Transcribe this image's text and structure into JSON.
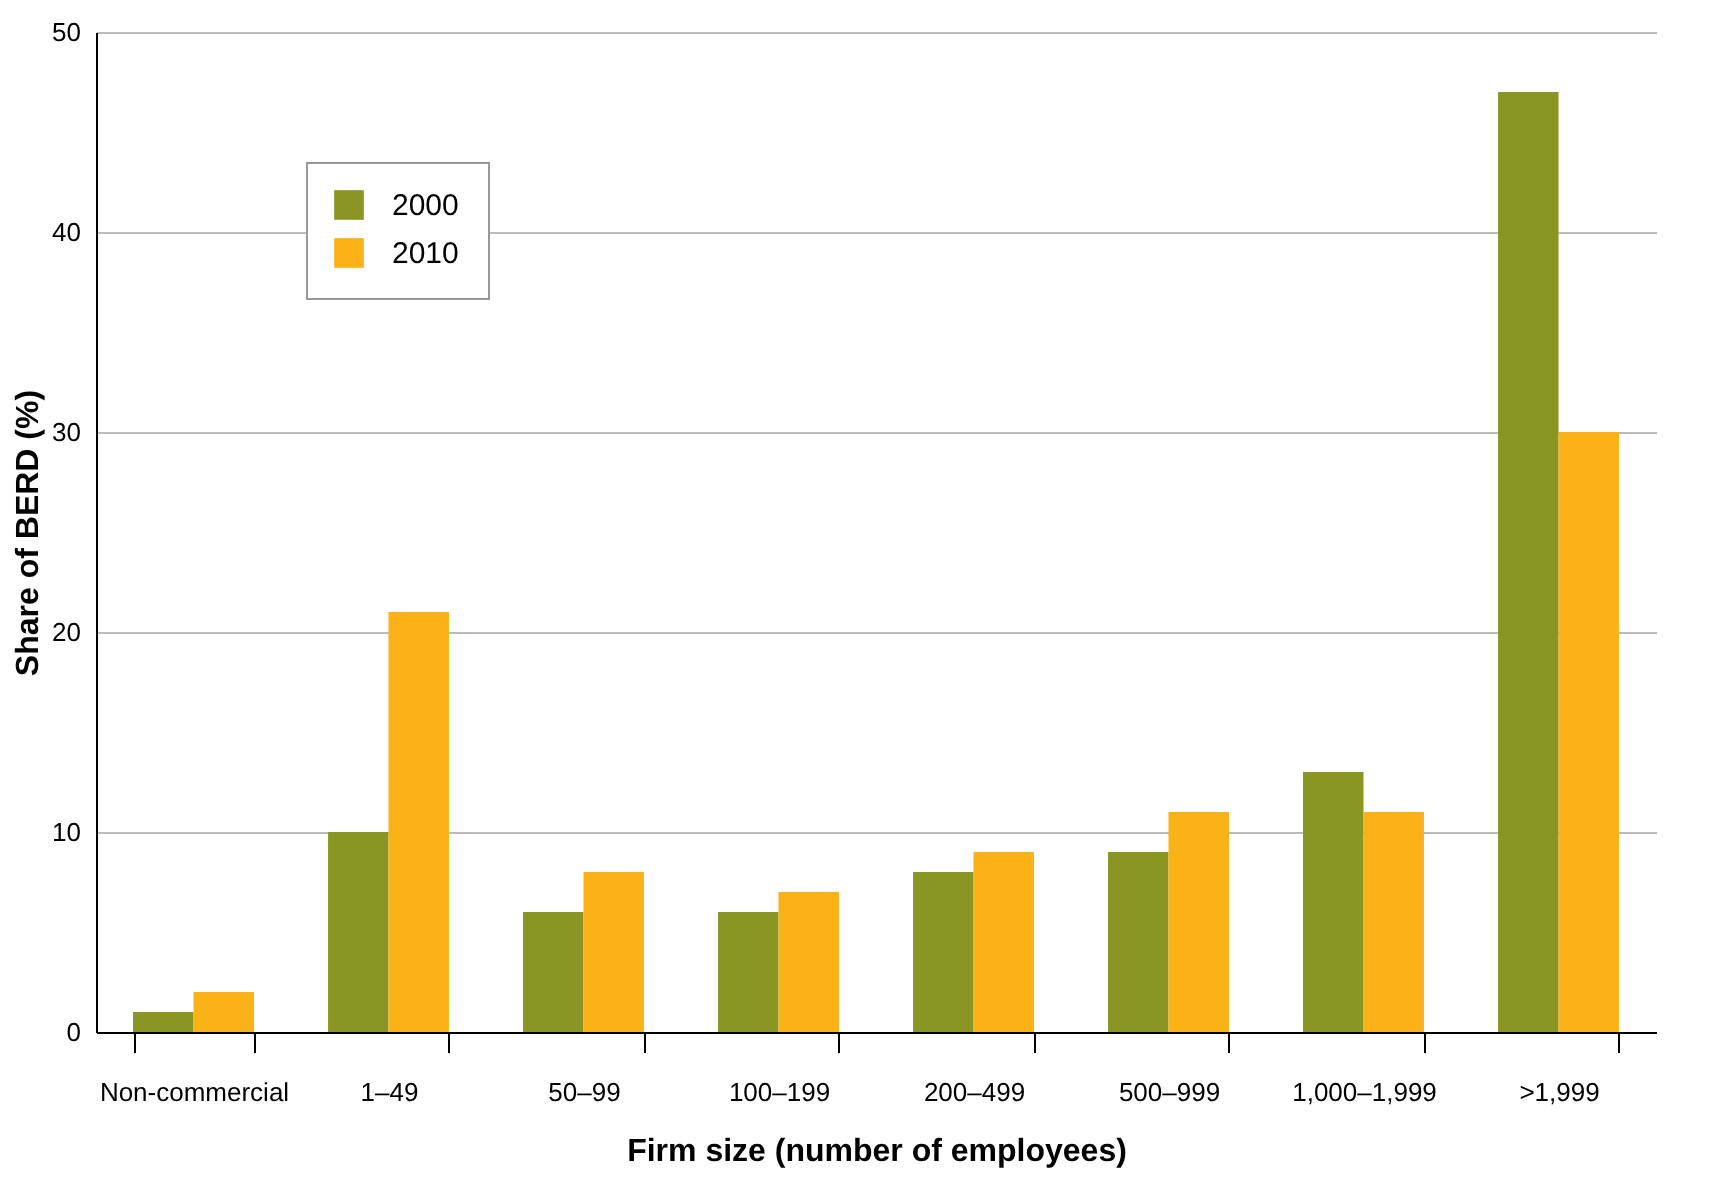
{
  "chart_data": {
    "type": "bar",
    "xlabel": "Firm size (number of employees)",
    "ylabel": "Share of BERD (%)",
    "categories": [
      "Non-commercial",
      "1–49",
      "50–99",
      "100–199",
      "200–499",
      "500–999",
      "1,000–1,999",
      ">1,999"
    ],
    "series": [
      {
        "name": "2000",
        "color": "#8a9623",
        "values": [
          1,
          10,
          6,
          6,
          8,
          9,
          13,
          47
        ]
      },
      {
        "name": "2010",
        "color": "#fbb217",
        "values": [
          2,
          21,
          8,
          7,
          9,
          11,
          11,
          30
        ]
      }
    ],
    "ylim": [
      0,
      50
    ],
    "yticks": [
      0,
      10,
      20,
      30,
      40,
      50
    ],
    "grid": "y",
    "legend": "top left"
  }
}
